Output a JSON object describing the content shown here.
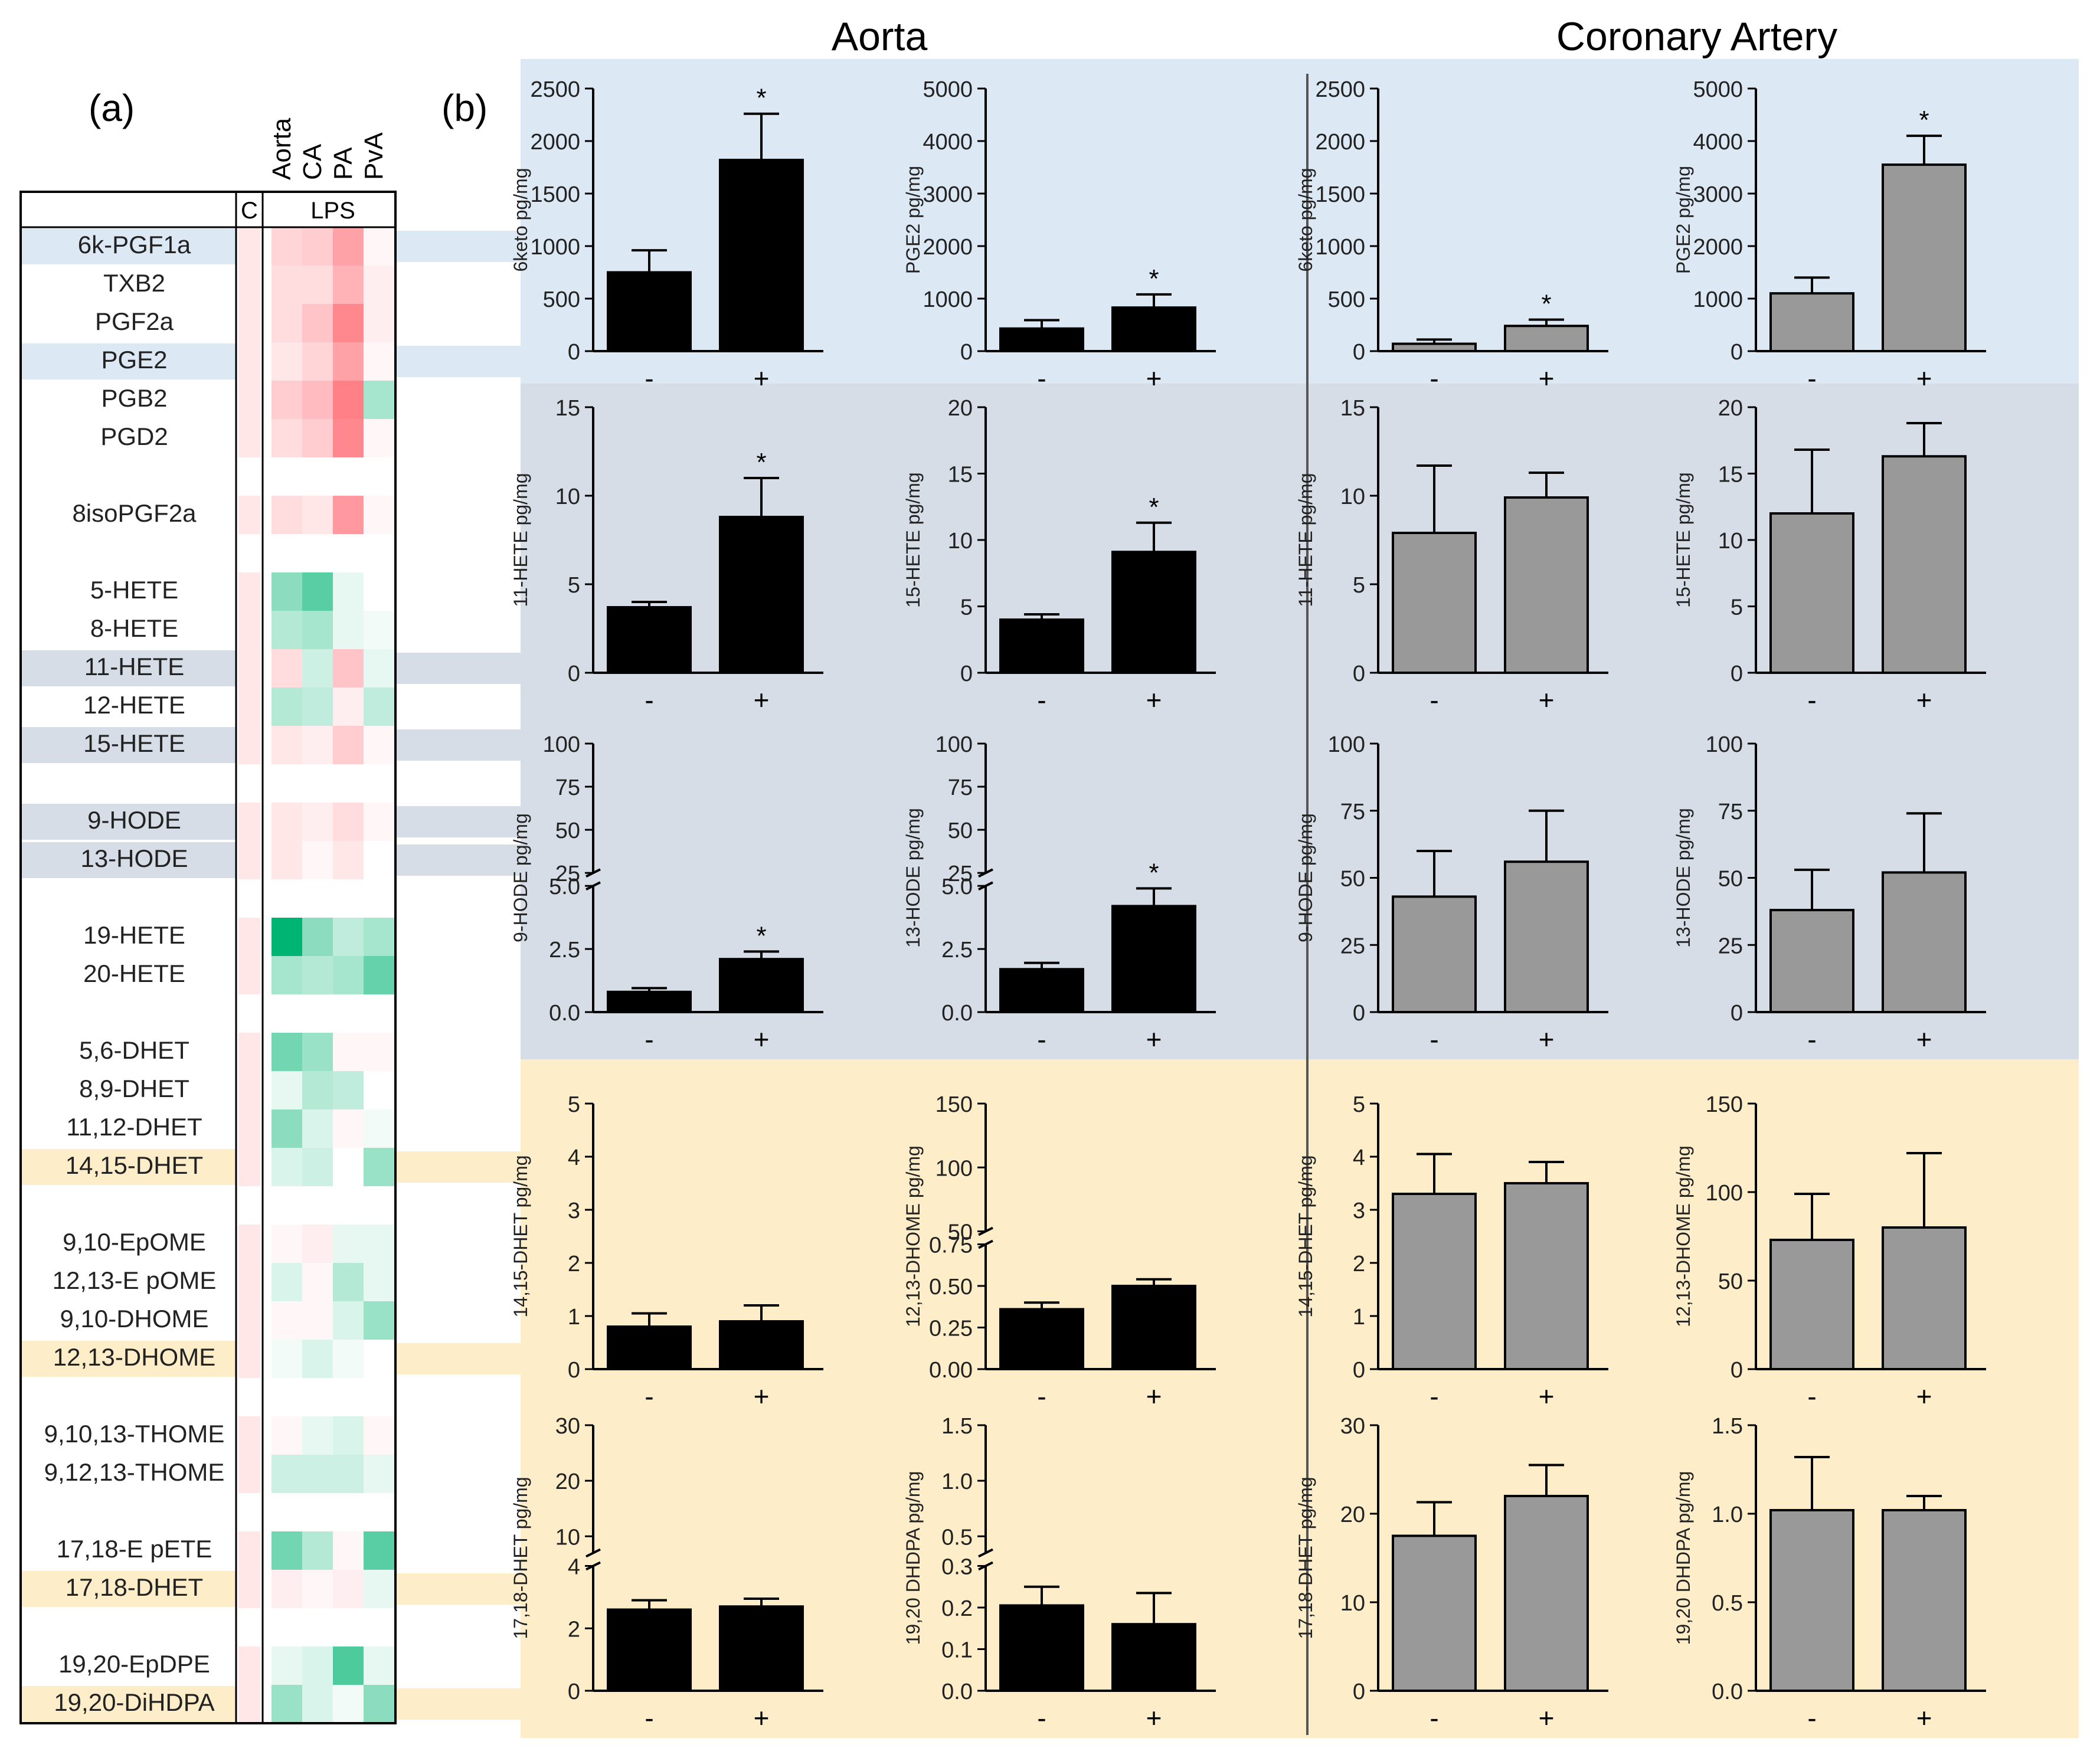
{
  "figure": {
    "panel_a_label": "(a)",
    "panel_b_label": "(b)",
    "column_titles": [
      "Aorta",
      "Coronary Artery"
    ]
  },
  "heatmap": {
    "tissue_labels": [
      "Aorta",
      "CA",
      "PA",
      "PvA"
    ],
    "group_labels": {
      "control": "C",
      "treatment": "LPS"
    },
    "band_colors": {
      "prostanoid": "#dce9f5",
      "hete": "#d6dde6",
      "diol": "#fdedc8"
    },
    "rows": [
      {
        "label": "6k-PGF1a",
        "band": "prostanoid",
        "values": [
          0.15,
          0.25,
          0.3,
          0.55,
          0.05
        ]
      },
      {
        "label": "TXB2",
        "values": [
          0.15,
          0.2,
          0.2,
          0.45,
          0.1
        ]
      },
      {
        "label": "PGF2a",
        "values": [
          0.15,
          0.2,
          0.35,
          0.7,
          0.1
        ]
      },
      {
        "label": "PGE2",
        "band": "prostanoid",
        "values": [
          0.15,
          0.15,
          0.25,
          0.55,
          0.05
        ]
      },
      {
        "label": "PGB2",
        "values": [
          0.15,
          0.3,
          0.4,
          0.75,
          -0.35
        ]
      },
      {
        "label": "PGD2",
        "values": [
          0.15,
          0.2,
          0.3,
          0.7,
          0.05
        ]
      },
      {
        "label": "",
        "values": null
      },
      {
        "label": "8isoPGF2a",
        "values": [
          0.15,
          0.2,
          0.15,
          0.6,
          0.05
        ]
      },
      {
        "label": "",
        "values": null
      },
      {
        "label": "5-HETE",
        "values": [
          0.15,
          -0.45,
          -0.65,
          -0.1,
          0.0
        ]
      },
      {
        "label": "8-HETE",
        "values": [
          0.15,
          -0.3,
          -0.35,
          -0.1,
          -0.05
        ]
      },
      {
        "label": "11-HETE",
        "band": "hete",
        "values": [
          0.15,
          0.2,
          -0.2,
          0.35,
          -0.1
        ]
      },
      {
        "label": "12-HETE",
        "values": [
          0.15,
          -0.3,
          -0.25,
          0.1,
          -0.25
        ]
      },
      {
        "label": "15-HETE",
        "band": "hete",
        "values": [
          0.15,
          0.15,
          0.1,
          0.3,
          0.05
        ]
      },
      {
        "label": "",
        "values": null
      },
      {
        "label": "9-HODE",
        "band": "hete",
        "values": [
          0.15,
          0.15,
          0.1,
          0.2,
          0.05
        ]
      },
      {
        "label": "13-HODE",
        "band": "hete",
        "values": [
          0.15,
          0.15,
          0.05,
          0.15,
          0.0
        ]
      },
      {
        "label": "",
        "values": null
      },
      {
        "label": "19-HETE",
        "values": [
          0.15,
          -1.0,
          -0.45,
          -0.25,
          -0.35
        ]
      },
      {
        "label": "20-HETE",
        "values": [
          0.15,
          -0.35,
          -0.3,
          -0.35,
          -0.6
        ]
      },
      {
        "label": "",
        "values": null
      },
      {
        "label": "5,6-DHET",
        "values": [
          0.15,
          -0.55,
          -0.4,
          0.05,
          0.05
        ]
      },
      {
        "label": "8,9-DHET",
        "values": [
          0.15,
          -0.1,
          -0.3,
          -0.25,
          0.0
        ]
      },
      {
        "label": "11,12-DHET",
        "values": [
          0.15,
          -0.45,
          -0.15,
          0.05,
          -0.05
        ]
      },
      {
        "label": "14,15-DHET",
        "band": "diol",
        "values": [
          0.15,
          -0.15,
          -0.2,
          0.0,
          -0.4
        ]
      },
      {
        "label": "",
        "values": null
      },
      {
        "label": "9,10-EpOME",
        "values": [
          0.15,
          0.05,
          0.1,
          -0.1,
          -0.1
        ]
      },
      {
        "label": "12,13-E pOME",
        "values": [
          0.15,
          -0.15,
          0.05,
          -0.3,
          -0.1
        ]
      },
      {
        "label": "9,10-DHOME",
        "values": [
          0.15,
          0.05,
          0.05,
          -0.15,
          -0.4
        ]
      },
      {
        "label": "12,13-DHOME",
        "band": "diol",
        "values": [
          0.15,
          -0.05,
          -0.15,
          -0.05,
          0.0
        ]
      },
      {
        "label": "",
        "values": null
      },
      {
        "label": "9,10,13-THOME",
        "values": [
          0.15,
          0.05,
          -0.1,
          -0.15,
          0.05
        ]
      },
      {
        "label": "9,12,13-THOME",
        "values": [
          0.15,
          -0.2,
          -0.2,
          -0.2,
          -0.1
        ]
      },
      {
        "label": "",
        "values": null
      },
      {
        "label": "17,18-E pETE",
        "values": [
          0.15,
          -0.55,
          -0.3,
          0.05,
          -0.65
        ]
      },
      {
        "label": "17,18-DHET",
        "band": "diol",
        "values": [
          0.15,
          0.1,
          0.05,
          0.1,
          -0.1
        ]
      },
      {
        "label": "",
        "values": null
      },
      {
        "label": "19,20-EpDPE",
        "values": [
          0.15,
          -0.1,
          -0.15,
          -0.7,
          -0.1
        ]
      },
      {
        "label": "19,20-DiHDPA",
        "band": "diol",
        "values": [
          0.15,
          -0.4,
          -0.15,
          -0.05,
          -0.45
        ]
      }
    ]
  },
  "chart_data": [
    {
      "type": "bar",
      "column": "Aorta",
      "ylabel": "6keto pg/mg",
      "categories": [
        "-",
        "+"
      ],
      "values": [
        750,
        1820
      ],
      "errors": [
        210,
        440
      ],
      "significant": [
        false,
        true
      ],
      "ylim": [
        0,
        2500
      ],
      "yticks": [
        "0",
        "500",
        "1000",
        "1500",
        "2000",
        "2500"
      ],
      "color": "#000000",
      "band": "prostanoid"
    },
    {
      "type": "bar",
      "column": "Aorta",
      "ylabel": "PGE2 pg/mg",
      "categories": [
        "-",
        "+"
      ],
      "values": [
        430,
        830
      ],
      "errors": [
        160,
        250
      ],
      "significant": [
        false,
        true
      ],
      "ylim": [
        0,
        5000
      ],
      "yticks": [
        "0",
        "1000",
        "2000",
        "3000",
        "4000",
        "5000"
      ],
      "color": "#000000",
      "band": "prostanoid"
    },
    {
      "type": "bar",
      "column": "Coronary Artery",
      "ylabel": "6keto pg/mg",
      "categories": [
        "-",
        "+"
      ],
      "values": [
        70,
        240
      ],
      "errors": [
        40,
        60
      ],
      "significant": [
        false,
        true
      ],
      "ylim": [
        0,
        2500
      ],
      "yticks": [
        "0",
        "500",
        "1000",
        "1500",
        "2000",
        "2500"
      ],
      "color": "#999999",
      "band": "prostanoid"
    },
    {
      "type": "bar",
      "column": "Coronary Artery",
      "ylabel": "PGE2 pg/mg",
      "categories": [
        "-",
        "+"
      ],
      "values": [
        1100,
        3550
      ],
      "errors": [
        300,
        550
      ],
      "significant": [
        false,
        true
      ],
      "ylim": [
        0,
        5000
      ],
      "yticks": [
        "0",
        "1000",
        "2000",
        "3000",
        "4000",
        "5000"
      ],
      "color": "#999999",
      "band": "prostanoid"
    },
    {
      "type": "bar",
      "column": "Aorta",
      "ylabel": "11-HETE pg/mg",
      "categories": [
        "-",
        "+"
      ],
      "values": [
        3.7,
        8.8
      ],
      "errors": [
        0.3,
        2.2
      ],
      "significant": [
        false,
        true
      ],
      "ylim": [
        0,
        15
      ],
      "yticks": [
        "0",
        "5",
        "10",
        "15"
      ],
      "color": "#000000",
      "band": "hete"
    },
    {
      "type": "bar",
      "column": "Aorta",
      "ylabel": "15-HETE pg/mg",
      "categories": [
        "-",
        "+"
      ],
      "values": [
        4.0,
        9.1
      ],
      "errors": [
        0.4,
        2.2
      ],
      "significant": [
        false,
        true
      ],
      "ylim": [
        0,
        20
      ],
      "yticks": [
        "0",
        "5",
        "10",
        "15",
        "20"
      ],
      "color": "#000000",
      "band": "hete"
    },
    {
      "type": "bar",
      "column": "Coronary Artery",
      "ylabel": "11-HETE pg/mg",
      "categories": [
        "-",
        "+"
      ],
      "values": [
        7.9,
        9.9
      ],
      "errors": [
        3.8,
        1.4
      ],
      "significant": [
        false,
        false
      ],
      "ylim": [
        0,
        15
      ],
      "yticks": [
        "0",
        "5",
        "10",
        "15"
      ],
      "color": "#999999",
      "band": "hete"
    },
    {
      "type": "bar",
      "column": "Coronary Artery",
      "ylabel": "15-HETE pg/mg",
      "categories": [
        "-",
        "+"
      ],
      "values": [
        12,
        16.3
      ],
      "errors": [
        4.8,
        2.5
      ],
      "significant": [
        false,
        false
      ],
      "ylim": [
        0,
        20
      ],
      "yticks": [
        "0",
        "5",
        "10",
        "15",
        "20"
      ],
      "color": "#999999",
      "band": "hete"
    },
    {
      "type": "bar",
      "column": "Aorta",
      "ylabel": "9-HODE pg/mg",
      "categories": [
        "-",
        "+"
      ],
      "values": [
        0.8,
        2.1
      ],
      "errors": [
        0.15,
        0.3
      ],
      "significant": [
        false,
        true
      ],
      "ylim": [
        0,
        100
      ],
      "axis_break": {
        "lower": [
          0,
          5
        ],
        "upper": [
          25,
          100
        ]
      },
      "yticks_lower": [
        "0.0",
        "2.5",
        "5.0"
      ],
      "yticks_upper": [
        "25",
        "50",
        "75",
        "100"
      ],
      "color": "#000000",
      "band": "hete"
    },
    {
      "type": "bar",
      "column": "Aorta",
      "ylabel": "13-HODE pg/mg",
      "categories": [
        "-",
        "+"
      ],
      "values": [
        1.7,
        4.2
      ],
      "errors": [
        0.25,
        0.7
      ],
      "significant": [
        false,
        true
      ],
      "ylim": [
        0,
        100
      ],
      "axis_break": {
        "lower": [
          0,
          5
        ],
        "upper": [
          25,
          100
        ]
      },
      "yticks_lower": [
        "0.0",
        "2.5",
        "5.0"
      ],
      "yticks_upper": [
        "25",
        "50",
        "75",
        "100"
      ],
      "color": "#000000",
      "band": "hete"
    },
    {
      "type": "bar",
      "column": "Coronary Artery",
      "ylabel": "9-HODE pg/mg",
      "categories": [
        "-",
        "+"
      ],
      "values": [
        43,
        56
      ],
      "errors": [
        17,
        19
      ],
      "significant": [
        false,
        false
      ],
      "ylim": [
        0,
        100
      ],
      "yticks": [
        "0",
        "25",
        "50",
        "75",
        "100"
      ],
      "color": "#999999",
      "band": "hete"
    },
    {
      "type": "bar",
      "column": "Coronary Artery",
      "ylabel": "13-HODE pg/mg",
      "categories": [
        "-",
        "+"
      ],
      "values": [
        38,
        52
      ],
      "errors": [
        15,
        22
      ],
      "significant": [
        false,
        false
      ],
      "ylim": [
        0,
        100
      ],
      "yticks": [
        "0",
        "25",
        "50",
        "75",
        "100"
      ],
      "color": "#999999",
      "band": "hete"
    },
    {
      "type": "bar",
      "column": "Aorta",
      "ylabel": "14,15-DHET pg/mg",
      "categories": [
        "-",
        "+"
      ],
      "values": [
        0.8,
        0.9
      ],
      "errors": [
        0.25,
        0.3
      ],
      "significant": [
        false,
        false
      ],
      "ylim": [
        0,
        5
      ],
      "yticks": [
        "0",
        "1",
        "2",
        "3",
        "4",
        "5"
      ],
      "color": "#000000",
      "band": "diol"
    },
    {
      "type": "bar",
      "column": "Aorta",
      "ylabel": "12,13-DHOME pg/mg",
      "categories": [
        "-",
        "+"
      ],
      "values": [
        0.36,
        0.5
      ],
      "errors": [
        0.04,
        0.04
      ],
      "significant": [
        false,
        false
      ],
      "ylim": [
        0,
        150
      ],
      "axis_break": {
        "lower": [
          0,
          0.75
        ],
        "upper": [
          50,
          150
        ]
      },
      "yticks_lower": [
        "0.00",
        "0.25",
        "0.50",
        "0.75"
      ],
      "yticks_upper": [
        "50",
        "100",
        "150"
      ],
      "color": "#000000",
      "band": "diol"
    },
    {
      "type": "bar",
      "column": "Coronary Artery",
      "ylabel": "14,15-DHET pg/mg",
      "categories": [
        "-",
        "+"
      ],
      "values": [
        3.3,
        3.5
      ],
      "errors": [
        0.75,
        0.4
      ],
      "significant": [
        false,
        false
      ],
      "ylim": [
        0,
        5
      ],
      "yticks": [
        "0",
        "1",
        "2",
        "3",
        "4",
        "5"
      ],
      "color": "#999999",
      "band": "diol"
    },
    {
      "type": "bar",
      "column": "Coronary Artery",
      "ylabel": "12,13-DHOME pg/mg",
      "categories": [
        "-",
        "+"
      ],
      "values": [
        73,
        80
      ],
      "errors": [
        26,
        42
      ],
      "significant": [
        false,
        false
      ],
      "ylim": [
        0,
        150
      ],
      "yticks": [
        "0",
        "50",
        "100",
        "150"
      ],
      "color": "#999999",
      "band": "diol"
    },
    {
      "type": "bar",
      "column": "Aorta",
      "ylabel": "17,18-DHET pg/mg",
      "categories": [
        "-",
        "+"
      ],
      "values": [
        2.6,
        2.7
      ],
      "errors": [
        0.3,
        0.25
      ],
      "significant": [
        false,
        false
      ],
      "ylim": [
        0,
        30
      ],
      "axis_break": {
        "lower": [
          0,
          4
        ],
        "upper": [
          7,
          30
        ]
      },
      "yticks_lower": [
        "0",
        "2",
        "4"
      ],
      "yticks_upper": [
        "10",
        "20",
        "30"
      ],
      "color": "#000000",
      "band": "diol"
    },
    {
      "type": "bar",
      "column": "Aorta",
      "ylabel": "19,20 DHDPA pg/mg",
      "categories": [
        "-",
        "+"
      ],
      "values": [
        0.205,
        0.16
      ],
      "errors": [
        0.045,
        0.075
      ],
      "significant": [
        false,
        false
      ],
      "ylim": [
        0,
        1.5
      ],
      "axis_break": {
        "lower": [
          0,
          0.3
        ],
        "upper": [
          0.35,
          1.5
        ]
      },
      "yticks_lower": [
        "0.0",
        "0.1",
        "0.2",
        "0.3"
      ],
      "yticks_upper": [
        "0.5",
        "1.0",
        "1.5"
      ],
      "color": "#000000",
      "band": "diol"
    },
    {
      "type": "bar",
      "column": "Coronary Artery",
      "ylabel": "17,18-DHET pg/mg",
      "categories": [
        "-",
        "+"
      ],
      "values": [
        17.5,
        22
      ],
      "errors": [
        3.8,
        3.5
      ],
      "significant": [
        false,
        false
      ],
      "ylim": [
        0,
        30
      ],
      "yticks": [
        "0",
        "10",
        "20",
        "30"
      ],
      "color": "#999999",
      "band": "diol"
    },
    {
      "type": "bar",
      "column": "Coronary Artery",
      "ylabel": "19,20 DHDPA pg/mg",
      "categories": [
        "-",
        "+"
      ],
      "values": [
        1.02,
        1.02
      ],
      "errors": [
        0.3,
        0.08
      ],
      "significant": [
        false,
        false
      ],
      "ylim": [
        0,
        1.5
      ],
      "yticks": [
        "0.0",
        "0.5",
        "1.0",
        "1.5"
      ],
      "color": "#999999",
      "band": "diol"
    }
  ],
  "significance_marker": "*"
}
